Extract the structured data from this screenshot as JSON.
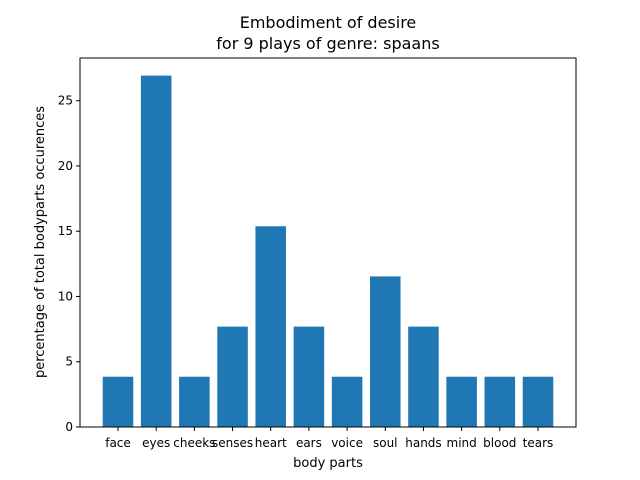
{
  "chart_data": {
    "type": "bar",
    "title": "Embodiment of desire",
    "subtitle": "for 9 plays of genre: spaans",
    "xlabel": "body parts",
    "ylabel": "percentage of total bodyparts occurences",
    "categories": [
      "face",
      "eyes",
      "cheeks",
      "senses",
      "heart",
      "ears",
      "voice",
      "soul",
      "hands",
      "mind",
      "blood",
      "tears"
    ],
    "values": [
      3.85,
      26.92,
      3.85,
      7.69,
      15.38,
      7.69,
      3.85,
      11.54,
      7.69,
      3.85,
      3.85,
      3.85
    ],
    "yticks": [
      0,
      5,
      10,
      15,
      20,
      25
    ],
    "ylim": [
      0,
      28.27
    ],
    "bar_color": "#1f77b4",
    "grid": false,
    "legend": false
  }
}
